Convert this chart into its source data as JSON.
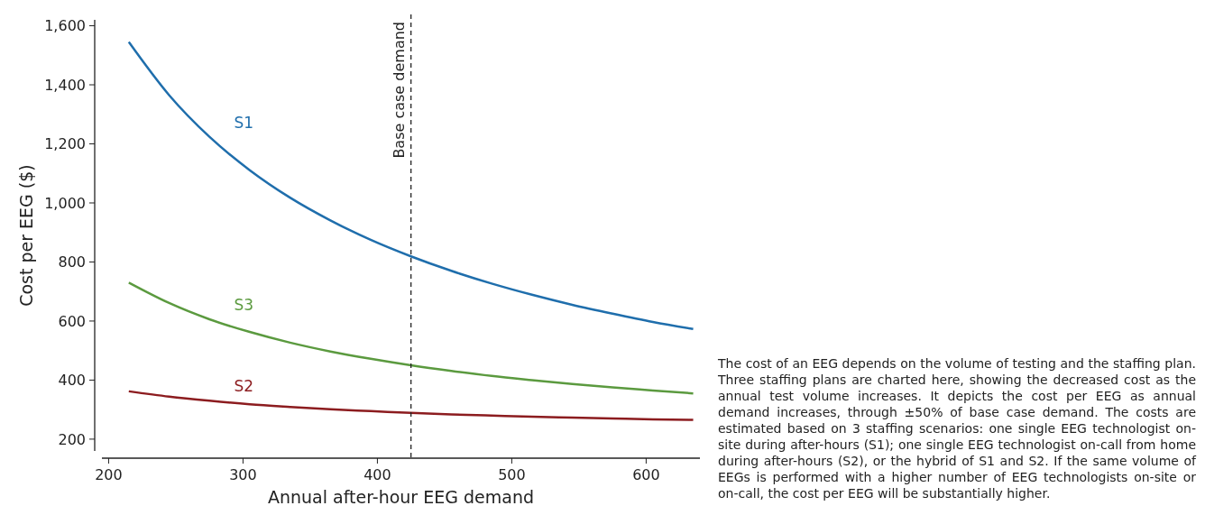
{
  "chart_data": {
    "type": "line",
    "xlabel": "Annual after-hour EEG demand",
    "ylabel": "Cost per EEG ($)",
    "xlim": [
      195,
      640
    ],
    "xticks": [
      200,
      300,
      400,
      500,
      600
    ],
    "ylim": [
      160,
      1620
    ],
    "yticks": [
      {
        "value": 200,
        "label": "200"
      },
      {
        "value": 400,
        "label": "400"
      },
      {
        "value": 600,
        "label": "600"
      },
      {
        "value": 800,
        "label": "800"
      },
      {
        "value": 1000,
        "label": "1,000"
      },
      {
        "value": 1200,
        "label": "1,200"
      },
      {
        "value": 1400,
        "label": "1,400"
      },
      {
        "value": 1600,
        "label": "1,600"
      }
    ],
    "x": [
      215,
      245,
      275,
      305,
      335,
      365,
      395,
      425,
      455,
      485,
      515,
      545,
      575,
      605,
      635
    ],
    "series": [
      {
        "name": "S1",
        "color": "#1f6eac",
        "values": [
          1545,
          1365,
          1224,
          1111,
          1018,
          941,
          875,
          819,
          770,
          727,
          689,
          655,
          625,
          597,
          573
        ]
      },
      {
        "name": "S3",
        "color": "#5b9a3f",
        "values": [
          730,
          661,
          606,
          563,
          527,
          497,
          472,
          450,
          431,
          414,
          400,
          387,
          375,
          365,
          355
        ]
      },
      {
        "name": "S2",
        "color": "#8c1c1f",
        "values": [
          362,
          344,
          330,
          318,
          309,
          301,
          295,
          289,
          284,
          280,
          276,
          273,
          270,
          267,
          265
        ]
      }
    ],
    "ref_lines": [
      {
        "axis": "x",
        "value": 425,
        "label": "Base case demand",
        "color": "#222222",
        "line_style": "dashed"
      }
    ],
    "grid": false,
    "marker": "none",
    "line_style": "solid",
    "annotations": [
      "The cost of an EEG depends on the volume of testing and the staffing plan. Three staffing plans are charted here, showing the decreased cost as the annual test volume increases. It depicts the cost per EEG as annual demand increases, through ±50% of base case demand. The costs are estimated based on 3 staffing scenarios: one single EEG technologist on-site during after-hours (S1); one single EEG technologist on-call from home during after-hours (S2), or the hybrid of S1 and S2. If the same volume of EEGs is performed with a higher number of EEG technologists on-site or on-call, the cost per EEG will be substantially higher."
    ]
  }
}
